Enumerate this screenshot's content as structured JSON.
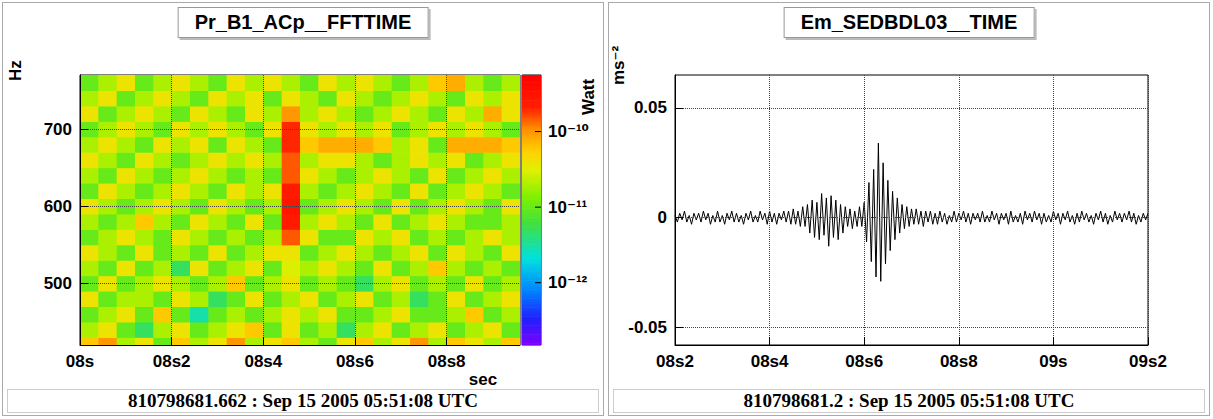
{
  "chart_data": [
    {
      "type": "heatmap",
      "title": "Pr_B1_ACp__FFTTIME",
      "x_label": "sec",
      "y_label": "Hz",
      "footer": "810798681.662 : Sep 15 2005 05:51:08 UTC",
      "xlim": [
        0,
        0.96
      ],
      "xticks": [
        {
          "value": 0,
          "label": "08s"
        },
        {
          "value": 0.2,
          "label": "08s2"
        },
        {
          "value": 0.4,
          "label": "08s4"
        },
        {
          "value": 0.6,
          "label": "08s6"
        },
        {
          "value": 0.8,
          "label": "08s8"
        }
      ],
      "ylim": [
        420,
        770
      ],
      "yticks": [
        500,
        600,
        700
      ],
      "grid": true,
      "colorbar": {
        "label": "Watt",
        "log": true,
        "range": [
          1.5e-13,
          5.6e-10
        ],
        "ticks": [
          {
            "value": 1e-12,
            "label": "10⁻¹²"
          },
          {
            "value": 1e-11,
            "label": "10⁻¹¹"
          },
          {
            "value": 1e-10,
            "label": "10⁻¹⁰"
          }
        ]
      },
      "x_edges": [
        0,
        0.04,
        0.08,
        0.12,
        0.16,
        0.2,
        0.24,
        0.28,
        0.32,
        0.36,
        0.4,
        0.44,
        0.48,
        0.52,
        0.56,
        0.6,
        0.64,
        0.68,
        0.72,
        0.76,
        0.8,
        0.84,
        0.88,
        0.92,
        0.96
      ],
      "y_edges": [
        410,
        430,
        450,
        470,
        490,
        510,
        530,
        550,
        570,
        590,
        610,
        630,
        650,
        670,
        690,
        710,
        730,
        750,
        770
      ],
      "cells": [
        [
          6e-11,
          1e-10,
          2e-11,
          4e-11,
          1e-11,
          6e-11,
          2e-11,
          4e-11,
          1e-10,
          2e-11,
          4e-11,
          6e-11,
          2e-11,
          1e-11,
          4e-11,
          6e-11,
          2e-11,
          4e-11,
          1e-10,
          2e-11,
          6e-11,
          4e-11,
          2e-11,
          6e-11
        ],
        [
          2e-11,
          4e-11,
          1e-11,
          5e-12,
          2e-11,
          4e-11,
          1e-11,
          2e-11,
          4e-11,
          6e-11,
          1e-11,
          4e-11,
          1e-11,
          2e-11,
          5e-12,
          2e-11,
          4e-11,
          1e-11,
          2e-11,
          4e-11,
          1e-11,
          2e-11,
          4e-11,
          1e-11
        ],
        [
          1e-11,
          2e-11,
          4e-11,
          1e-11,
          6e-11,
          1e-11,
          3e-12,
          1e-11,
          2e-11,
          1e-11,
          2e-11,
          4e-11,
          2e-11,
          4e-11,
          1e-11,
          1e-11,
          2e-11,
          4e-11,
          1e-11,
          1e-11,
          2e-11,
          6e-11,
          1e-11,
          2e-11
        ],
        [
          4e-11,
          1e-11,
          2e-11,
          2e-11,
          1e-11,
          4e-11,
          2e-11,
          5e-12,
          1e-11,
          4e-11,
          1e-11,
          2e-11,
          4e-11,
          1e-11,
          2e-11,
          4e-11,
          1e-11,
          2e-11,
          5e-12,
          1e-11,
          4e-11,
          1e-11,
          2e-11,
          4e-11
        ],
        [
          1e-11,
          4e-11,
          1e-11,
          2e-11,
          4e-11,
          2e-11,
          1e-11,
          2e-11,
          6e-11,
          1e-11,
          2e-11,
          4e-11,
          1e-11,
          2e-11,
          1e-11,
          5e-12,
          2e-11,
          4e-11,
          1e-11,
          2e-11,
          1e-11,
          4e-11,
          1e-11,
          2e-11
        ],
        [
          2e-11,
          1e-11,
          4e-11,
          1e-11,
          2e-11,
          5e-12,
          4e-11,
          1e-11,
          2e-11,
          4e-11,
          1e-11,
          3e-11,
          2e-11,
          4e-11,
          2e-11,
          1e-11,
          4e-11,
          1e-11,
          2e-11,
          6e-11,
          2e-11,
          1e-11,
          2e-11,
          1e-11
        ],
        [
          4e-11,
          2e-11,
          1e-11,
          4e-11,
          1e-11,
          2e-11,
          1e-11,
          4e-11,
          1e-11,
          2e-11,
          4e-11,
          4e-11,
          1e-11,
          2e-11,
          4e-11,
          2e-11,
          1e-11,
          2e-11,
          4e-11,
          1e-11,
          4e-11,
          2e-11,
          1e-11,
          4e-11
        ],
        [
          1e-11,
          2e-11,
          4e-11,
          2e-11,
          1e-11,
          4e-11,
          2e-11,
          1e-11,
          2e-11,
          1e-11,
          2e-11,
          1.5e-10,
          4e-11,
          1e-11,
          1e-11,
          4e-11,
          2e-11,
          4e-11,
          1e-11,
          2e-11,
          1e-11,
          2e-11,
          4e-11,
          2e-11
        ],
        [
          2e-11,
          1e-11,
          2e-11,
          6e-11,
          2e-11,
          1e-11,
          4e-11,
          2e-11,
          1e-11,
          4e-11,
          1e-11,
          2.5e-10,
          2e-11,
          4e-11,
          2e-11,
          1e-11,
          4e-11,
          1e-11,
          2e-11,
          4e-11,
          2e-11,
          1e-11,
          1e-11,
          2e-11
        ],
        [
          4e-11,
          2e-11,
          1e-11,
          2e-11,
          4e-11,
          2e-11,
          1e-11,
          4e-11,
          2e-11,
          1e-11,
          2e-11,
          3e-10,
          1e-11,
          2e-11,
          4e-11,
          2e-11,
          1e-11,
          4e-11,
          1e-11,
          2e-11,
          4e-11,
          2e-11,
          1e-11,
          4e-11
        ],
        [
          1e-11,
          4e-11,
          2e-11,
          1e-11,
          2e-11,
          4e-11,
          2e-11,
          1e-11,
          4e-11,
          2e-11,
          4e-11,
          2.5e-10,
          2e-11,
          1e-11,
          2e-11,
          4e-11,
          2e-11,
          1e-11,
          4e-11,
          1e-11,
          2e-11,
          4e-11,
          2e-11,
          1e-11
        ],
        [
          2e-11,
          1e-11,
          4e-11,
          2e-11,
          1e-11,
          2e-11,
          4e-11,
          2e-11,
          1e-11,
          2e-11,
          1e-11,
          1.5e-10,
          4e-11,
          2e-11,
          1e-11,
          2e-11,
          4e-11,
          2e-11,
          1e-11,
          4e-11,
          1e-11,
          2e-11,
          4e-11,
          2e-11
        ],
        [
          4e-11,
          2e-11,
          1e-11,
          4e-11,
          2e-11,
          1e-11,
          2e-11,
          4e-11,
          2e-11,
          4e-11,
          2e-11,
          1.5e-10,
          2e-11,
          4e-11,
          4e-11,
          2e-11,
          1e-11,
          2e-11,
          4e-11,
          2e-11,
          4e-11,
          1e-11,
          2e-11,
          4e-11
        ],
        [
          2e-11,
          4e-11,
          2e-11,
          1e-11,
          4e-11,
          2e-11,
          4e-11,
          1e-11,
          4e-11,
          2e-11,
          1e-11,
          2e-10,
          6e-11,
          8e-11,
          8e-11,
          8e-11,
          6e-11,
          2e-11,
          4e-11,
          1e-11,
          8e-11,
          8e-11,
          8e-11,
          6e-11
        ],
        [
          1e-11,
          2e-11,
          4e-11,
          2e-11,
          1e-11,
          4e-11,
          2e-11,
          4e-11,
          2e-11,
          1e-11,
          4e-11,
          2e-10,
          4e-11,
          2e-11,
          4e-11,
          2e-11,
          4e-11,
          1e-11,
          2e-11,
          4e-11,
          2e-11,
          4e-11,
          2e-11,
          1e-11
        ],
        [
          4e-11,
          1e-11,
          2e-11,
          4e-11,
          2e-11,
          1e-11,
          4e-11,
          2e-11,
          1e-11,
          4e-11,
          2e-11,
          1e-10,
          2e-11,
          4e-11,
          2e-11,
          1e-11,
          2e-11,
          4e-11,
          2e-11,
          1e-11,
          4e-11,
          2e-11,
          8e-11,
          4e-11
        ],
        [
          2e-11,
          4e-11,
          1e-11,
          2e-11,
          4e-11,
          2e-11,
          1e-11,
          4e-11,
          2e-11,
          4e-11,
          1e-11,
          4e-11,
          2e-11,
          1e-11,
          4e-11,
          2e-11,
          1e-11,
          2e-11,
          4e-11,
          2e-11,
          1e-11,
          4e-11,
          2e-11,
          4e-11
        ],
        [
          1e-11,
          2e-11,
          4e-11,
          1e-11,
          2e-11,
          4e-11,
          2e-11,
          1e-11,
          4e-11,
          2e-11,
          4e-11,
          2e-11,
          1e-11,
          4e-11,
          2e-11,
          4e-11,
          2e-11,
          1e-11,
          2e-11,
          6e-11,
          8e-11,
          2e-11,
          1e-11,
          2e-11
        ]
      ]
    },
    {
      "type": "line",
      "title": "Em_SEDBDL03__TIME",
      "y_label": "ms⁻²",
      "footer": "810798681.2 : Sep 15 2005 05:51:08 UTC",
      "color": "#000000",
      "grid": true,
      "xlim": [
        0.2,
        1.2
      ],
      "xticks": [
        {
          "value": 0.2,
          "label": "08s2"
        },
        {
          "value": 0.4,
          "label": "08s4"
        },
        {
          "value": 0.6,
          "label": "08s6"
        },
        {
          "value": 0.8,
          "label": "08s8"
        },
        {
          "value": 1.0,
          "label": "09s"
        },
        {
          "value": 1.2,
          "label": "09s2"
        }
      ],
      "ylim": [
        -0.058,
        0.065
      ],
      "yticks": [
        -0.05,
        0,
        0.05
      ],
      "x": [
        0.2,
        0.205,
        0.21,
        0.215,
        0.22,
        0.225,
        0.23,
        0.235,
        0.24,
        0.245,
        0.25,
        0.255,
        0.26,
        0.265,
        0.27,
        0.275,
        0.28,
        0.285,
        0.29,
        0.295,
        0.3,
        0.305,
        0.31,
        0.315,
        0.32,
        0.325,
        0.33,
        0.335,
        0.34,
        0.345,
        0.35,
        0.355,
        0.36,
        0.365,
        0.37,
        0.375,
        0.38,
        0.385,
        0.39,
        0.395,
        0.4,
        0.405,
        0.41,
        0.415,
        0.42,
        0.425,
        0.43,
        0.435,
        0.44,
        0.445,
        0.45,
        0.455,
        0.46,
        0.465,
        0.47,
        0.475,
        0.48,
        0.485,
        0.49,
        0.495,
        0.5,
        0.505,
        0.51,
        0.515,
        0.52,
        0.525,
        0.53,
        0.535,
        0.54,
        0.545,
        0.55,
        0.555,
        0.56,
        0.565,
        0.57,
        0.575,
        0.58,
        0.585,
        0.59,
        0.595,
        0.6,
        0.605,
        0.61,
        0.615,
        0.62,
        0.625,
        0.63,
        0.635,
        0.64,
        0.645,
        0.65,
        0.655,
        0.66,
        0.665,
        0.67,
        0.675,
        0.68,
        0.685,
        0.69,
        0.695,
        0.7,
        0.705,
        0.71,
        0.715,
        0.72,
        0.725,
        0.73,
        0.735,
        0.74,
        0.745,
        0.75,
        0.755,
        0.76,
        0.765,
        0.77,
        0.775,
        0.78,
        0.785,
        0.79,
        0.795,
        0.8,
        0.805,
        0.81,
        0.815,
        0.82,
        0.825,
        0.83,
        0.835,
        0.84,
        0.845,
        0.85,
        0.855,
        0.86,
        0.865,
        0.87,
        0.875,
        0.88,
        0.885,
        0.89,
        0.895,
        0.9,
        0.905,
        0.91,
        0.915,
        0.92,
        0.925,
        0.93,
        0.935,
        0.94,
        0.945,
        0.95,
        0.955,
        0.96,
        0.965,
        0.97,
        0.975,
        0.98,
        0.985,
        0.99,
        0.995,
        1.0,
        1.005,
        1.01,
        1.015,
        1.02,
        1.025,
        1.03,
        1.035,
        1.04,
        1.045,
        1.05,
        1.055,
        1.06,
        1.065,
        1.07,
        1.075,
        1.08,
        1.085,
        1.09,
        1.095,
        1.1,
        1.105,
        1.11,
        1.115,
        1.12,
        1.125,
        1.13,
        1.135,
        1.14,
        1.145,
        1.15,
        1.155,
        1.16,
        1.165,
        1.17,
        1.175,
        1.18,
        1.185,
        1.19,
        1.195,
        1.2
      ],
      "values": [
        0.001,
        -0.002,
        0.002,
        -0.001,
        0.003,
        -0.002,
        0.001,
        -0.003,
        0.002,
        -0.001,
        0.002,
        -0.002,
        0.003,
        -0.001,
        0.002,
        -0.003,
        0.001,
        -0.002,
        0.003,
        -0.002,
        0.001,
        -0.003,
        0.002,
        -0.001,
        0.003,
        -0.002,
        0.002,
        -0.002,
        0.001,
        -0.003,
        0.002,
        -0.001,
        0.003,
        -0.002,
        0.001,
        -0.002,
        0.003,
        -0.001,
        0.002,
        -0.003,
        0.003,
        -0.002,
        0.002,
        -0.003,
        0.002,
        -0.001,
        0.003,
        -0.002,
        0.003,
        -0.003,
        0.004,
        -0.003,
        0.003,
        -0.004,
        0.005,
        -0.004,
        0.006,
        -0.007,
        0.008,
        -0.009,
        0.007,
        -0.01,
        0.011,
        -0.008,
        0.009,
        -0.013,
        0.01,
        -0.009,
        0.008,
        -0.01,
        0.006,
        -0.007,
        0.005,
        -0.004,
        0.004,
        -0.005,
        0.003,
        -0.004,
        0.005,
        -0.004,
        0.007,
        -0.011,
        0.016,
        -0.02,
        0.022,
        -0.027,
        0.034,
        -0.029,
        0.025,
        -0.021,
        0.017,
        -0.015,
        0.012,
        -0.01,
        0.009,
        -0.007,
        0.006,
        -0.005,
        0.005,
        -0.004,
        0.004,
        -0.003,
        0.004,
        -0.003,
        0.003,
        -0.004,
        0.003,
        -0.002,
        0.003,
        -0.003,
        0.002,
        -0.003,
        0.003,
        -0.002,
        0.002,
        -0.003,
        0.001,
        -0.002,
        0.003,
        -0.002,
        0.002,
        -0.001,
        0.003,
        -0.002,
        0.002,
        -0.003,
        0.002,
        -0.001,
        0.002,
        -0.002,
        0.003,
        -0.002,
        0.001,
        -0.002,
        0.003,
        -0.001,
        0.002,
        -0.003,
        0.002,
        -0.001,
        0.002,
        -0.003,
        0.003,
        -0.002,
        0.001,
        -0.002,
        0.002,
        -0.003,
        0.003,
        -0.001,
        0.002,
        -0.002,
        0.003,
        -0.001,
        0.002,
        -0.003,
        0.002,
        -0.002,
        0.001,
        -0.002,
        0.003,
        -0.001,
        0.002,
        -0.003,
        0.002,
        -0.001,
        0.003,
        -0.002,
        0.001,
        -0.003,
        0.002,
        -0.002,
        0.003,
        -0.001,
        0.002,
        -0.002,
        0.001,
        -0.003,
        0.002,
        -0.001,
        0.003,
        -0.002,
        0.002,
        -0.003,
        0.001,
        -0.002,
        0.003,
        -0.001,
        0.002,
        -0.002,
        0.002,
        -0.001,
        0.003,
        -0.002,
        0.002,
        -0.003,
        0.001,
        -0.002,
        0.002,
        -0.001,
        0.002
      ]
    }
  ]
}
